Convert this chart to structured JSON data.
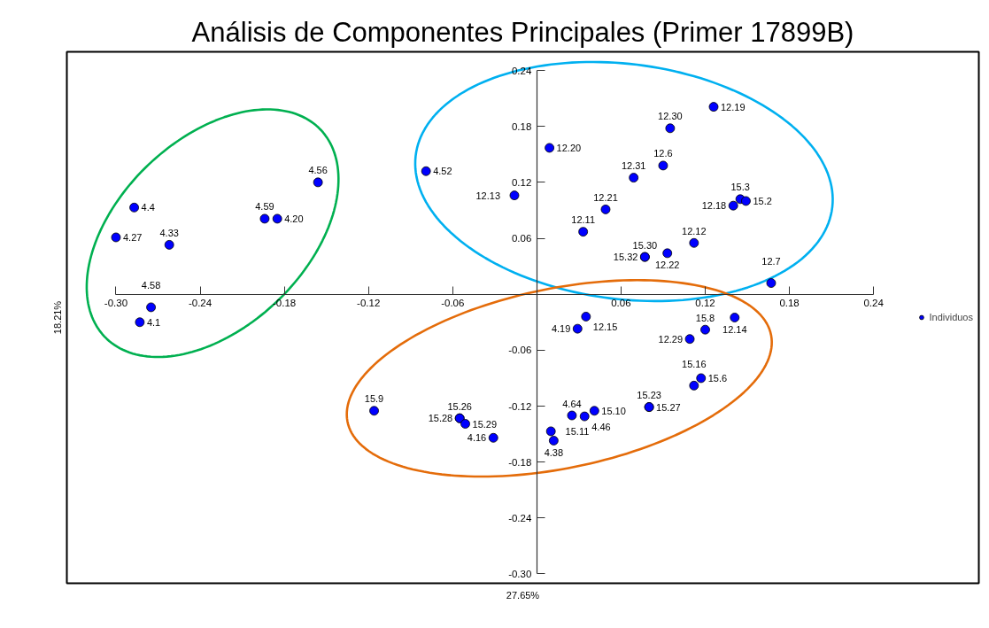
{
  "chart_data": {
    "type": "scatter",
    "title": "Análisis de Componentes Principales (Primer 17899B)",
    "xlabel": "27.65%",
    "ylabel": "18.21%",
    "xlim": [
      -0.335,
      0.315
    ],
    "ylim": [
      -0.31,
      0.26
    ],
    "xticks": [
      {
        "value": -0.3,
        "label": "-0.30"
      },
      -0.24,
      -0.18,
      -0.12,
      -0.06,
      0.06,
      0.12,
      0.18,
      0.24
    ],
    "yticks": [
      0.24,
      0.18,
      0.12,
      0.06,
      -0.06,
      -0.12,
      -0.18,
      -0.24,
      {
        "value": -0.3,
        "label": "-0.30"
      }
    ],
    "marker": "circle",
    "legend": "right",
    "series": [
      {
        "name": "Individuos",
        "color": "#0000ff",
        "x": [
          -0.156,
          -0.287,
          -0.3,
          -0.262,
          -0.194,
          -0.185,
          -0.275,
          -0.283,
          -0.079,
          -0.016,
          0.009,
          0.069,
          0.049,
          0.033,
          0.077,
          0.077,
          0.126,
          0.095,
          0.09,
          0.14,
          0.145,
          0.149,
          0.112,
          0.093,
          0.167,
          -0.116,
          -0.055,
          -0.055,
          -0.051,
          -0.031,
          0.035,
          0.029,
          0.01,
          0.012,
          0.025,
          0.034,
          0.041,
          0.08,
          0.08,
          0.109,
          0.12,
          0.141,
          0.112,
          0.117
        ],
        "values": [
          0.12,
          0.093,
          0.061,
          0.053,
          0.081,
          0.081,
          -0.014,
          -0.03,
          0.132,
          0.106,
          0.157,
          0.125,
          0.091,
          0.067,
          0.04,
          0.04,
          0.201,
          0.178,
          0.138,
          0.095,
          0.102,
          0.1,
          0.055,
          0.044,
          0.012,
          -0.125,
          -0.133,
          -0.133,
          -0.139,
          -0.154,
          -0.024,
          -0.037,
          -0.147,
          -0.157,
          -0.13,
          -0.131,
          -0.125,
          -0.121,
          -0.121,
          -0.048,
          -0.038,
          -0.025,
          -0.098,
          -0.09
        ]
      }
    ],
    "annotations": [
      {
        "text": "4.56",
        "x": -0.156,
        "y": 0.12
      },
      {
        "text": "4.4",
        "x": -0.287,
        "y": 0.093
      },
      {
        "text": "4.27",
        "x": -0.3,
        "y": 0.061
      },
      {
        "text": "4.33",
        "x": -0.262,
        "y": 0.053
      },
      {
        "text": "4.59",
        "x": -0.194,
        "y": 0.081
      },
      {
        "text": "4.20",
        "x": -0.185,
        "y": 0.081
      },
      {
        "text": "4.58",
        "x": -0.275,
        "y": -0.014
      },
      {
        "text": "4.1",
        "x": -0.283,
        "y": -0.03
      },
      {
        "text": "4.52",
        "x": -0.079,
        "y": 0.132
      },
      {
        "text": "12.13",
        "x": -0.016,
        "y": 0.106
      },
      {
        "text": "12.20",
        "x": 0.009,
        "y": 0.157
      },
      {
        "text": "12.31",
        "x": 0.069,
        "y": 0.125
      },
      {
        "text": "12.21",
        "x": 0.049,
        "y": 0.091
      },
      {
        "text": "12.11",
        "x": 0.033,
        "y": 0.067
      },
      {
        "text": "15.30",
        "x": 0.077,
        "y": 0.04
      },
      {
        "text": "15.32",
        "x": 0.077,
        "y": 0.04
      },
      {
        "text": "12.19",
        "x": 0.126,
        "y": 0.201
      },
      {
        "text": "12.30",
        "x": 0.095,
        "y": 0.178
      },
      {
        "text": "12.6",
        "x": 0.09,
        "y": 0.138
      },
      {
        "text": "12.18",
        "x": 0.14,
        "y": 0.095
      },
      {
        "text": "15.3",
        "x": 0.145,
        "y": 0.102
      },
      {
        "text": "15.2",
        "x": 0.149,
        "y": 0.1
      },
      {
        "text": "12.12",
        "x": 0.112,
        "y": 0.055
      },
      {
        "text": "12.22",
        "x": 0.093,
        "y": 0.044
      },
      {
        "text": "12.7",
        "x": 0.167,
        "y": 0.012
      },
      {
        "text": "15.9",
        "x": -0.116,
        "y": -0.125
      },
      {
        "text": "15.26",
        "x": -0.055,
        "y": -0.133
      },
      {
        "text": "15.28",
        "x": -0.055,
        "y": -0.133
      },
      {
        "text": "15.29",
        "x": -0.051,
        "y": -0.139
      },
      {
        "text": "4.16",
        "x": -0.031,
        "y": -0.154
      },
      {
        "text": "12.15",
        "x": 0.035,
        "y": -0.024
      },
      {
        "text": "4.19",
        "x": 0.029,
        "y": -0.037
      },
      {
        "text": "15.11",
        "x": 0.01,
        "y": -0.147
      },
      {
        "text": "4.38",
        "x": 0.012,
        "y": -0.157
      },
      {
        "text": "4.64",
        "x": 0.025,
        "y": -0.13
      },
      {
        "text": "4.46",
        "x": 0.034,
        "y": -0.131
      },
      {
        "text": "15.10",
        "x": 0.041,
        "y": -0.125
      },
      {
        "text": "15.23",
        "x": 0.08,
        "y": -0.121
      },
      {
        "text": "15.27",
        "x": 0.08,
        "y": -0.121
      },
      {
        "text": "12.29",
        "x": 0.109,
        "y": -0.048
      },
      {
        "text": "15.8",
        "x": 0.12,
        "y": -0.038
      },
      {
        "text": "12.14",
        "x": 0.141,
        "y": -0.025
      },
      {
        "text": "15.16",
        "x": 0.112,
        "y": -0.098
      },
      {
        "text": "15.6",
        "x": 0.117,
        "y": -0.09
      }
    ]
  }
}
